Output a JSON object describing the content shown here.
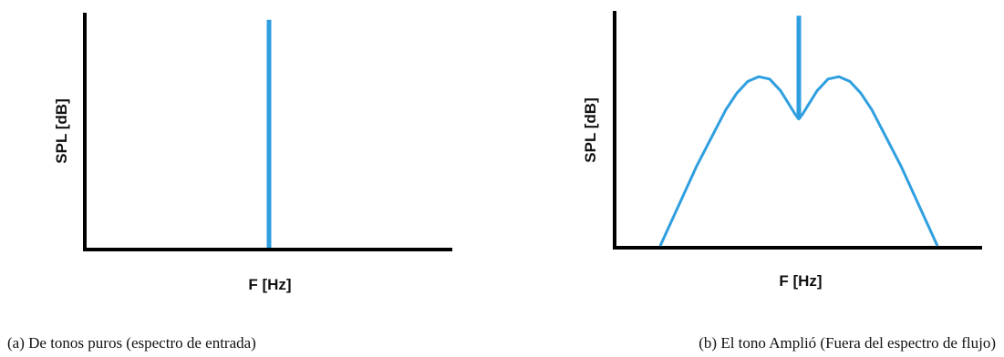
{
  "colors": {
    "axis": "#000000",
    "series": "#2f9fe0"
  },
  "chart_data": [
    {
      "type": "line",
      "panel": "a",
      "xlabel": "F [Hz]",
      "ylabel": "SPL [dB]",
      "caption": "(a) De tonos puros (espectro de entrada)",
      "xlim": [
        0,
        1
      ],
      "ylim": [
        0,
        1
      ],
      "x_ticks": false,
      "y_ticks": false,
      "grid": false,
      "series": [
        {
          "x": [
            0.5,
            0.5
          ],
          "y": [
            0,
            0.97
          ]
        }
      ]
    },
    {
      "type": "line",
      "panel": "b",
      "xlabel": "F [Hz]",
      "ylabel": "SPL [dB]",
      "caption": "(b) El tono Amplió (Fuera  del espectro de flujo)",
      "xlim": [
        0,
        1
      ],
      "ylim": [
        0,
        1
      ],
      "x_ticks": false,
      "y_ticks": false,
      "grid": false,
      "series": [
        {
          "x": [
            0.12,
            0.17,
            0.22,
            0.27,
            0.3,
            0.33,
            0.36,
            0.39,
            0.42,
            0.45,
            0.47,
            0.49,
            0.5,
            0.51,
            0.53,
            0.55,
            0.58,
            0.61,
            0.64,
            0.67,
            0.7,
            0.73,
            0.78,
            0.83,
            0.88
          ],
          "y": [
            0,
            0.17,
            0.34,
            0.49,
            0.58,
            0.65,
            0.7,
            0.72,
            0.71,
            0.66,
            0.61,
            0.56,
            0.54,
            0.56,
            0.61,
            0.66,
            0.71,
            0.72,
            0.7,
            0.65,
            0.58,
            0.49,
            0.34,
            0.17,
            0
          ]
        },
        {
          "x": [
            0.5,
            0.5
          ],
          "y": [
            0.54,
            0.98
          ]
        }
      ]
    }
  ]
}
